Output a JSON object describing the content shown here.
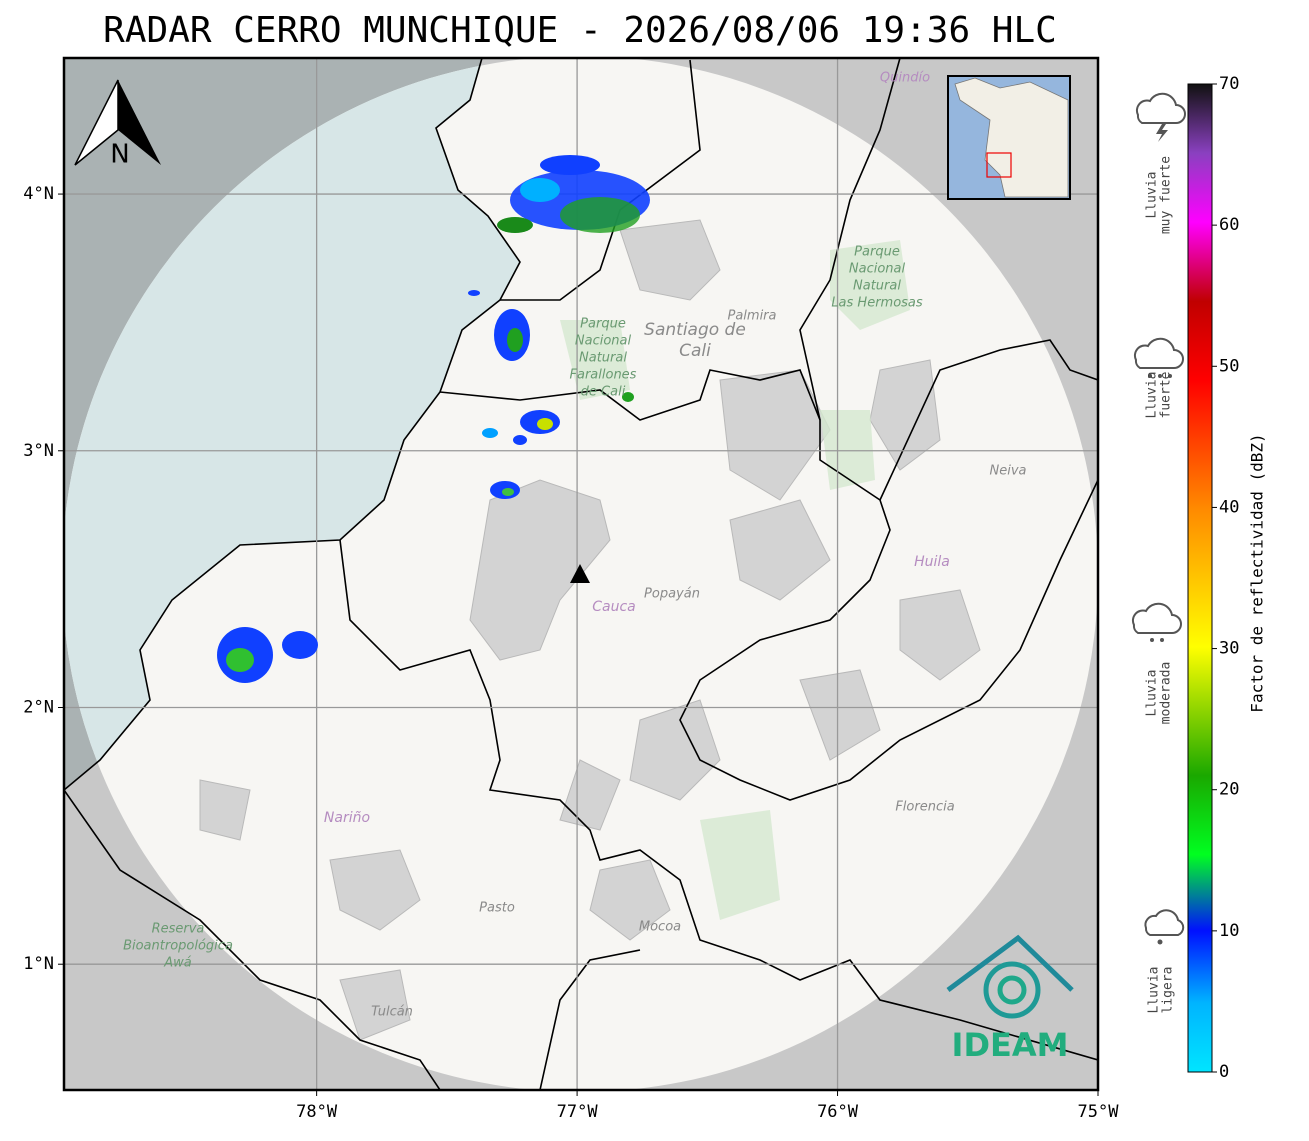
{
  "title": "RADAR CERRO MUNCHIQUE - 2026/08/06 19:36 HLC",
  "map": {
    "xlim": [
      -78.97,
      -75
    ],
    "ylim": [
      0.51,
      4.53
    ],
    "xticks": [
      {
        "value": -78,
        "label": "78°W"
      },
      {
        "value": -77,
        "label": "77°W"
      },
      {
        "value": -76,
        "label": "76°W"
      },
      {
        "value": -75,
        "label": "75°W"
      }
    ],
    "yticks": [
      {
        "value": 1,
        "label": "1°N"
      },
      {
        "value": 2,
        "label": "2°N"
      },
      {
        "value": 3,
        "label": "3°N"
      },
      {
        "value": 4,
        "label": "4°N"
      }
    ],
    "grid": true,
    "compass": "N",
    "logo": "IDEAM",
    "place_labels": [
      {
        "lines": [
          "Parque",
          "Nacional",
          "Natural",
          "Las Hermosas"
        ]
      },
      {
        "lines": [
          "Parque",
          "Nacional",
          "Natural",
          "Farallones",
          "de Cali"
        ]
      },
      {
        "lines": [
          "Santiago de",
          "Cali"
        ]
      },
      {
        "lines": [
          "Palmira"
        ]
      },
      {
        "lines": [
          "Quindío"
        ]
      },
      {
        "lines": [
          "Neiva"
        ]
      },
      {
        "lines": [
          "Huila"
        ]
      },
      {
        "lines": [
          "Cauca"
        ]
      },
      {
        "lines": [
          "Popayán"
        ]
      },
      {
        "lines": [
          "Nariño"
        ]
      },
      {
        "lines": [
          "Florencia"
        ]
      },
      {
        "lines": [
          "Pasto"
        ]
      },
      {
        "lines": [
          "Mocoa"
        ]
      },
      {
        "lines": [
          "Tulcán"
        ]
      },
      {
        "lines": [
          "Reserva",
          "Bioantropológica",
          "Awá"
        ]
      }
    ]
  },
  "colorbar": {
    "label": "Factor de reflectividad (dBZ)",
    "range": [
      0,
      70
    ],
    "ticks": [
      0,
      10,
      20,
      30,
      40,
      50,
      60,
      70
    ]
  },
  "rain_legend": [
    {
      "lines": [
        "Lluvia",
        "muy fuerte"
      ]
    },
    {
      "lines": [
        "Lluvia",
        "fuerte"
      ]
    },
    {
      "lines": [
        "Lluvia",
        "moderada"
      ]
    },
    {
      "lines": [
        "Lluvia",
        "ligera"
      ]
    }
  ]
}
